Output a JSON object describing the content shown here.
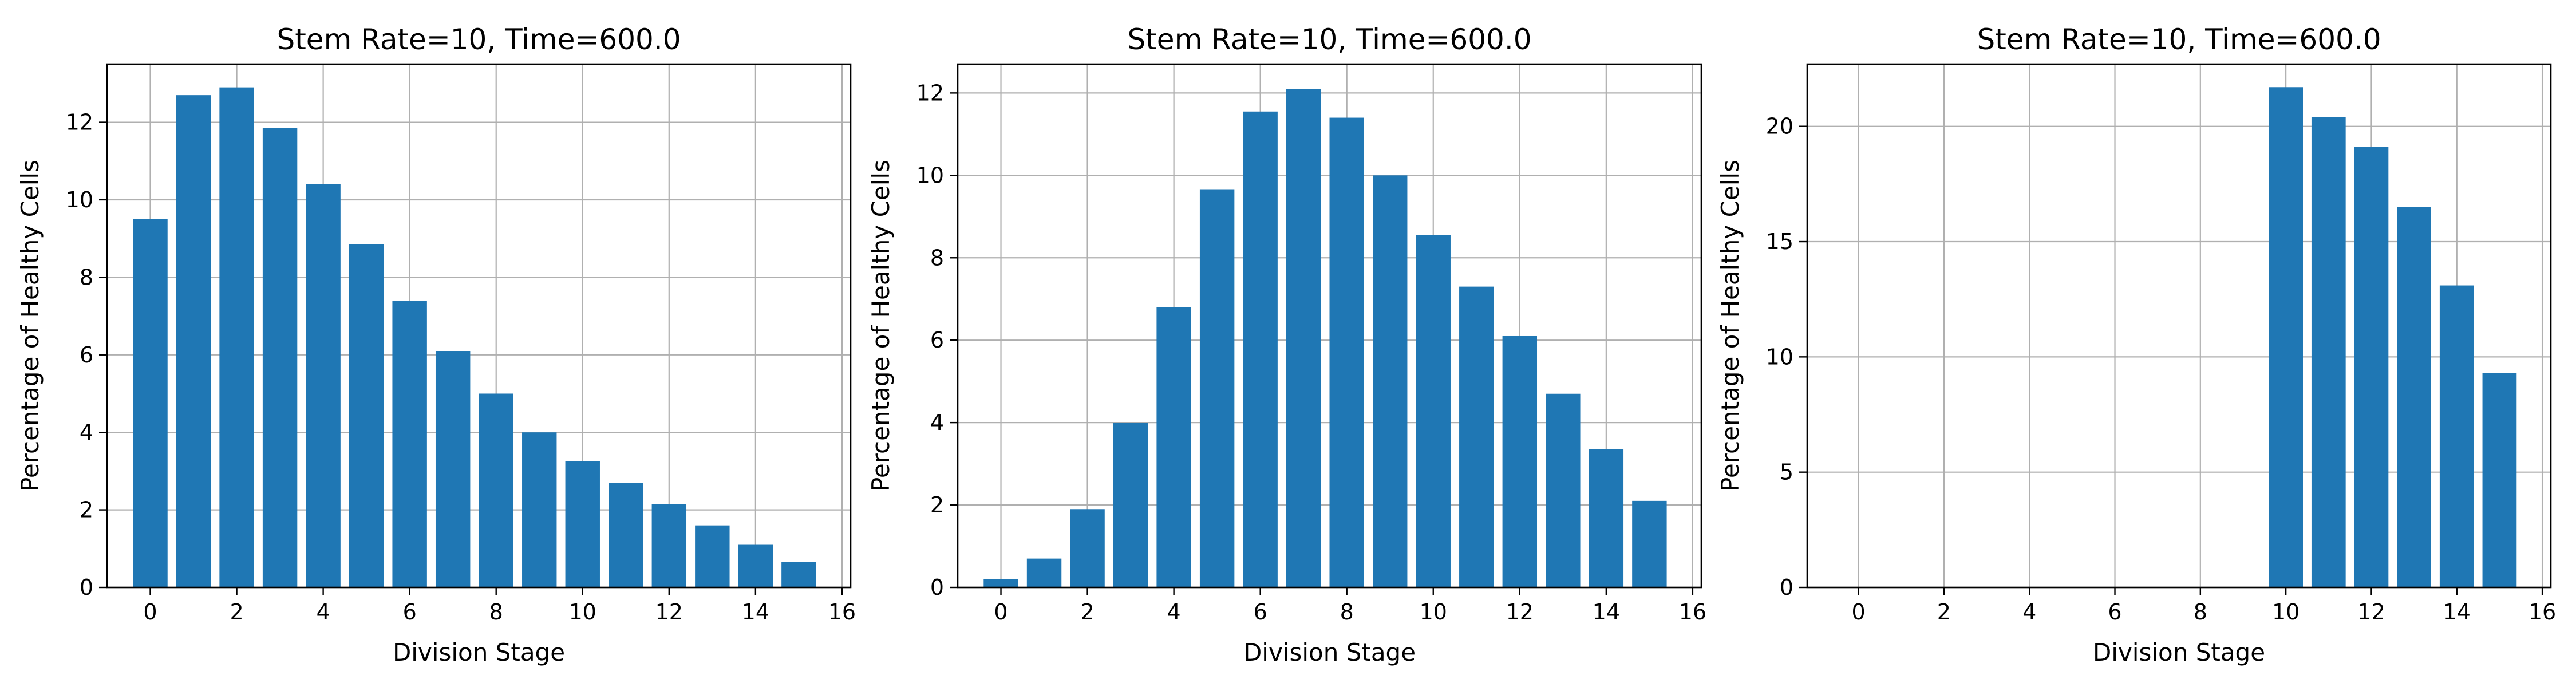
{
  "figure": {
    "background": "#ffffff",
    "bar_color": "#1f77b4",
    "grid_color": "#b0b0b0"
  },
  "chart_data": [
    {
      "type": "bar",
      "title": "Stem Rate=10, Time=600.0",
      "xlabel": "Division Stage",
      "ylabel": "Percentage of Healthy Cells",
      "x": [
        0,
        1,
        2,
        3,
        4,
        5,
        6,
        7,
        8,
        9,
        10,
        11,
        12,
        13,
        14,
        15
      ],
      "values": [
        9.5,
        12.7,
        12.9,
        11.85,
        10.4,
        8.85,
        7.4,
        6.1,
        5.0,
        4.0,
        3.25,
        2.7,
        2.15,
        1.6,
        1.1,
        0.65
      ],
      "xlim": [
        -1,
        16.2
      ],
      "ylim": [
        0,
        13.5
      ],
      "xticks": [
        0,
        2,
        4,
        6,
        8,
        10,
        12,
        14,
        16
      ],
      "yticks": [
        0,
        2,
        4,
        6,
        8,
        10,
        12
      ],
      "grid": true,
      "legend": "none"
    },
    {
      "type": "bar",
      "title": "Stem Rate=10, Time=600.0",
      "xlabel": "Division Stage",
      "ylabel": "Percentage of Healthy Cells",
      "x": [
        0,
        1,
        2,
        3,
        4,
        5,
        6,
        7,
        8,
        9,
        10,
        11,
        12,
        13,
        14,
        15
      ],
      "values": [
        0.2,
        0.7,
        1.9,
        4.0,
        6.8,
        9.65,
        11.55,
        12.1,
        11.4,
        10.0,
        8.55,
        7.3,
        6.1,
        4.7,
        3.35,
        2.1
      ],
      "xlim": [
        -1,
        16.2
      ],
      "ylim": [
        0,
        12.7
      ],
      "xticks": [
        0,
        2,
        4,
        6,
        8,
        10,
        12,
        14,
        16
      ],
      "yticks": [
        0,
        2,
        4,
        6,
        8,
        10,
        12
      ],
      "grid": true,
      "legend": "none"
    },
    {
      "type": "bar",
      "title": "Stem Rate=10, Time=600.0",
      "xlabel": "Division Stage",
      "ylabel": "Percentage of Healthy Cells",
      "x": [
        0,
        1,
        2,
        3,
        4,
        5,
        6,
        7,
        8,
        9,
        10,
        11,
        12,
        13,
        14,
        15
      ],
      "values": [
        0,
        0,
        0,
        0,
        0,
        0,
        0,
        0,
        0,
        0,
        21.7,
        20.4,
        19.1,
        16.5,
        13.1,
        9.3
      ],
      "xlim": [
        -1.2,
        16.2
      ],
      "ylim": [
        0,
        22.7
      ],
      "xticks": [
        0,
        2,
        4,
        6,
        8,
        10,
        12,
        14,
        16
      ],
      "yticks": [
        0,
        5,
        10,
        15,
        20
      ],
      "grid": true,
      "legend": "none"
    }
  ]
}
